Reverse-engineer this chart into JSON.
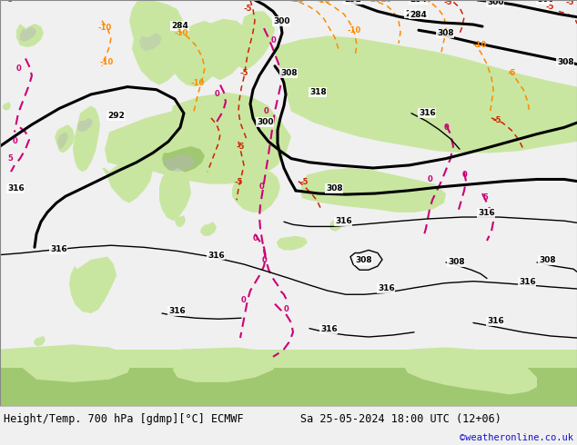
{
  "title_left": "Height/Temp. 700 hPa [gdmp][°C] ECMWF",
  "title_right": "Sa 25-05-2024 18:00 UTC (12+06)",
  "credit": "©weatheronline.co.uk",
  "fig_width": 6.34,
  "fig_height": 4.9,
  "dpi": 100,
  "land_green": "#c8e6a0",
  "sea_gray": "#c8c8c8",
  "highland_green": "#a0c870",
  "bottom_bg": "#f0f0f0",
  "label_fontsize": 8.5,
  "credit_color": "#1111cc",
  "credit_fontsize": 7.5,
  "map_border": "#888888"
}
